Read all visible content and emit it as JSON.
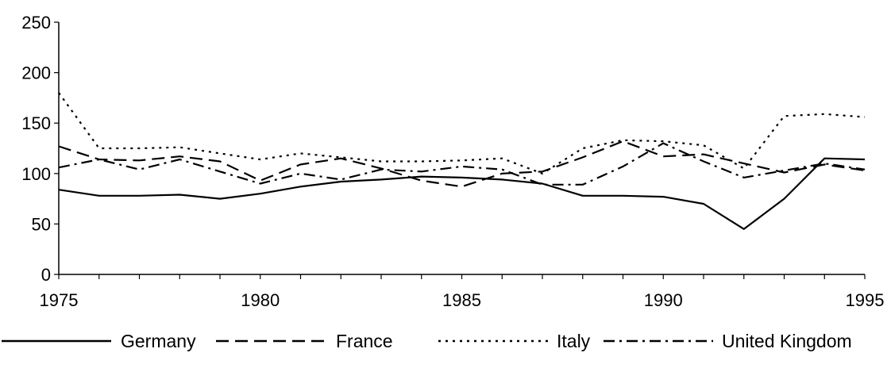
{
  "chart_data": {
    "type": "line",
    "title": "",
    "xlabel": "",
    "ylabel": "",
    "xlim": [
      1975,
      1995
    ],
    "ylim": [
      0,
      250
    ],
    "x_ticks": [
      "1975",
      "1980",
      "1985",
      "1990",
      "1995"
    ],
    "y_ticks": [
      "0",
      "50",
      "100",
      "150",
      "200",
      "250"
    ],
    "grid": false,
    "legend_position": "bottom",
    "x": [
      1975,
      1976,
      1977,
      1978,
      1979,
      1980,
      1981,
      1982,
      1983,
      1984,
      1985,
      1986,
      1987,
      1988,
      1989,
      1990,
      1991,
      1992,
      1993,
      1994,
      1995
    ],
    "series": [
      {
        "name": "Germany",
        "line_style": "solid",
        "values": [
          84,
          78,
          78,
          79,
          75,
          80,
          87,
          92,
          94,
          97,
          96,
          94,
          90,
          78,
          78,
          77,
          70,
          45,
          75,
          115,
          114
        ]
      },
      {
        "name": "France",
        "line_style": "dashed",
        "values": [
          127,
          114,
          113,
          117,
          112,
          93,
          109,
          115,
          105,
          93,
          87,
          100,
          102,
          116,
          132,
          117,
          119,
          110,
          101,
          109,
          103
        ]
      },
      {
        "name": "Italy",
        "line_style": "dotted",
        "values": [
          180,
          125,
          125,
          126,
          120,
          114,
          120,
          116,
          112,
          112,
          113,
          115,
          100,
          125,
          133,
          132,
          128,
          105,
          157,
          159,
          156
        ]
      },
      {
        "name": "United Kingdom",
        "line_style": "dash-dot",
        "values": [
          106,
          114,
          104,
          114,
          102,
          90,
          100,
          94,
          104,
          102,
          107,
          104,
          89,
          89,
          107,
          130,
          112,
          96,
          103,
          110,
          104
        ]
      }
    ]
  }
}
